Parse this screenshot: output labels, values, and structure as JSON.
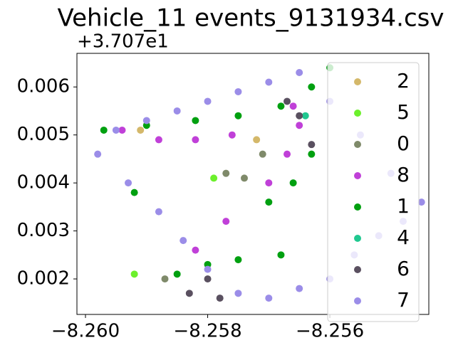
{
  "chart_data": {
    "type": "scatter",
    "title": "Vehicle_11 events_9131934.csv",
    "y_offset_text": "+3.707e1",
    "xlim": [
      -8.26014,
      -8.25438
    ],
    "ylim": [
      0.00126,
      0.0067
    ],
    "xticks": [
      {
        "value": -8.26,
        "label": "−8.260"
      },
      {
        "value": -8.258,
        "label": "−8.258"
      },
      {
        "value": -8.256,
        "label": "−8.256"
      }
    ],
    "yticks": [
      0.002,
      0.003,
      0.004,
      0.005,
      0.006
    ],
    "legend": "upper right",
    "series": [
      {
        "name": "2",
        "color": "#d4b86a",
        "x": [
          -8.2591,
          -8.2572
        ],
        "y": [
          0.0051,
          0.0049
        ]
      },
      {
        "name": "5",
        "color": "#6cf02c",
        "x": [
          -8.2579,
          -8.2592
        ],
        "y": [
          0.0041,
          0.0021
        ]
      },
      {
        "name": "0",
        "color": "#7f8a6a",
        "x": [
          -8.2574,
          -8.2577,
          -8.2571,
          -8.2587
        ],
        "y": [
          0.0041,
          0.0042,
          0.0046,
          0.002
        ]
      },
      {
        "name": "8",
        "color": "#c040d8",
        "x": [
          -8.2594,
          -8.2588,
          -8.2582,
          -8.2576,
          -8.2566,
          -8.2565,
          -8.2567,
          -8.257,
          -8.2577,
          -8.2582
        ],
        "y": [
          0.0051,
          0.0049,
          0.0049,
          0.005,
          0.0056,
          0.0052,
          0.0046,
          0.004,
          0.0032,
          0.0026
        ]
      },
      {
        "name": "1",
        "color": "#00a010",
        "x": [
          -8.2597,
          -8.259,
          -8.2582,
          -8.2575,
          -8.2568,
          -8.2563,
          -8.256,
          -8.2568,
          -8.2575,
          -8.258,
          -8.2585,
          -8.2592,
          -8.257,
          -8.2566,
          -8.2563
        ],
        "y": [
          0.0051,
          0.0052,
          0.0053,
          0.0054,
          0.0056,
          0.006,
          0.0064,
          0.0025,
          0.0024,
          0.0023,
          0.0021,
          0.0038,
          0.0036,
          0.004,
          0.0046
        ]
      },
      {
        "name": "4",
        "color": "#20c890",
        "x": [
          -8.2564
        ],
        "y": [
          0.0054
        ]
      },
      {
        "name": "6",
        "color": "#5a5060",
        "x": [
          -8.2567,
          -8.2565,
          -8.2563,
          -8.258,
          -8.2578,
          -8.2583
        ],
        "y": [
          0.0057,
          0.0054,
          0.0048,
          0.002,
          0.0016,
          0.0017
        ]
      },
      {
        "name": "7",
        "color": "#9b8de8",
        "x": [
          -8.2598,
          -8.2593,
          -8.2588,
          -8.2584,
          -8.258,
          -8.2575,
          -8.257,
          -8.2565,
          -8.256,
          -8.2556,
          -8.2552,
          -8.2548,
          -8.2545,
          -8.255,
          -8.2555,
          -8.256,
          -8.2565,
          -8.257,
          -8.2575,
          -8.258,
          -8.2585,
          -8.259,
          -8.2595
        ],
        "y": [
          0.0046,
          0.004,
          0.0034,
          0.0028,
          0.0022,
          0.0017,
          0.0016,
          0.0018,
          0.002,
          0.0025,
          0.0029,
          0.0032,
          0.0036,
          0.0042,
          0.005,
          0.0057,
          0.0063,
          0.0061,
          0.0059,
          0.0057,
          0.0055,
          0.0053,
          0.0051
        ]
      }
    ]
  }
}
